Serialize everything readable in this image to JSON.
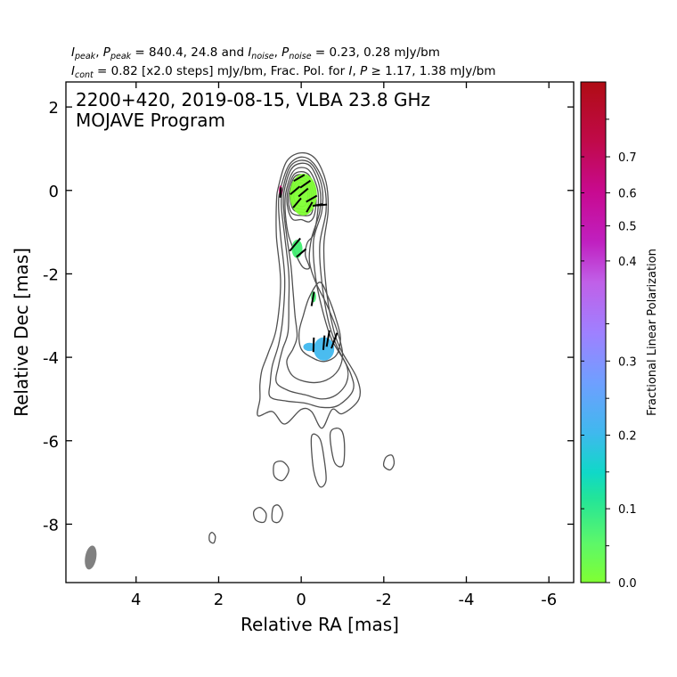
{
  "header": {
    "line1": {
      "i_peak": "I",
      "i_peak_sub": "peak",
      "p_peak": "P",
      "p_peak_sub": "peak",
      "peak_values": " = 840.4, 24.8 and ",
      "i_noise": "I",
      "i_noise_sub": "noise",
      "p_noise": "P",
      "p_noise_sub": "noise",
      "noise_values": " = 0.23, 0.28 mJy/bm"
    },
    "line2": {
      "i_cont": "I",
      "i_cont_sub": "cont",
      "cont_text": " = 0.82 [x2.0 steps] mJy/bm, Frac. Pol. for ",
      "i_sym": "I",
      "p_sym": "P",
      "threshold_text": " ≥ 1.17, 1.38 mJy/bm"
    }
  },
  "plot_title": {
    "line1": "2200+420, 2019-08-15, VLBA 23.8 GHz",
    "line2": "MOJAVE Program"
  },
  "colors": {
    "contour": "#505050",
    "beam": "#808080",
    "vector": "#000000",
    "colormap": [
      "#80ff33",
      "#40ee70",
      "#10d8c8",
      "#40b8ee",
      "#6f9fff",
      "#9f80ff",
      "#c060e8",
      "#c020c0",
      "#c80a70",
      "#b00c14"
    ]
  },
  "chart_data": {
    "type": "contour-map",
    "xlabel": "Relative RA [mas]",
    "ylabel": "Relative Dec [mas]",
    "xlim": [
      5.7,
      -6.6
    ],
    "ylim": [
      -9.4,
      2.6
    ],
    "xticks": [
      4,
      2,
      0,
      -2,
      -4,
      -6
    ],
    "yticks": [
      2,
      0,
      -2,
      -4,
      -6,
      -8
    ],
    "x_tick_labels": [
      "4",
      "2",
      "0",
      "-2",
      "-4",
      "-6"
    ],
    "y_tick_labels": [
      "2",
      "0",
      "-2",
      "-4",
      "-6",
      "-8"
    ],
    "contours_ra_dec": [
      [
        [
          0.55,
          0.1
        ],
        [
          0.35,
          0.7
        ],
        [
          0.0,
          0.9
        ],
        [
          -0.35,
          0.75
        ],
        [
          -0.6,
          0.2
        ],
        [
          -0.65,
          -0.5
        ],
        [
          -0.55,
          -1.3
        ],
        [
          -0.6,
          -2.3
        ],
        [
          -0.75,
          -3.2
        ],
        [
          -0.95,
          -3.8
        ],
        [
          -1.35,
          -4.5
        ],
        [
          -1.4,
          -5.0
        ],
        [
          -1.0,
          -5.35
        ],
        [
          -0.75,
          -5.25
        ],
        [
          -0.5,
          -5.7
        ],
        [
          -0.25,
          -5.3
        ],
        [
          0.0,
          -5.25
        ],
        [
          0.4,
          -5.6
        ],
        [
          0.7,
          -5.3
        ],
        [
          1.05,
          -5.4
        ],
        [
          1.0,
          -5.0
        ],
        [
          1.0,
          -4.65
        ],
        [
          0.95,
          -4.3
        ],
        [
          0.8,
          -3.9
        ],
        [
          0.6,
          -3.3
        ],
        [
          0.5,
          -2.2
        ],
        [
          0.6,
          -1.1
        ],
        [
          0.6,
          -0.3
        ]
      ],
      [
        [
          0.5,
          0.05
        ],
        [
          0.3,
          0.6
        ],
        [
          0.0,
          0.8
        ],
        [
          -0.3,
          0.65
        ],
        [
          -0.55,
          0.15
        ],
        [
          -0.6,
          -0.5
        ],
        [
          -0.45,
          -1.3
        ],
        [
          -0.5,
          -2.2
        ],
        [
          -0.65,
          -3.1
        ],
        [
          -0.85,
          -3.7
        ],
        [
          -1.2,
          -4.4
        ],
        [
          -1.25,
          -4.8
        ],
        [
          -0.9,
          -5.15
        ],
        [
          -0.5,
          -5.2
        ],
        [
          -0.1,
          -5.1
        ],
        [
          0.35,
          -5.05
        ],
        [
          0.75,
          -4.95
        ],
        [
          0.75,
          -4.6
        ],
        [
          0.7,
          -4.2
        ],
        [
          0.55,
          -3.7
        ],
        [
          0.45,
          -3.1
        ],
        [
          0.4,
          -2.1
        ],
        [
          0.5,
          -1.1
        ],
        [
          0.55,
          -0.35
        ]
      ],
      [
        [
          0.45,
          0.0
        ],
        [
          0.28,
          0.55
        ],
        [
          0.0,
          0.72
        ],
        [
          -0.28,
          0.6
        ],
        [
          -0.5,
          0.1
        ],
        [
          -0.5,
          -0.5
        ],
        [
          -0.3,
          -1.2
        ],
        [
          -0.35,
          -2.1
        ],
        [
          -0.55,
          -3.0
        ],
        [
          -0.75,
          -3.6
        ],
        [
          -1.1,
          -4.2
        ],
        [
          -1.1,
          -4.6
        ],
        [
          -0.85,
          -4.9
        ],
        [
          -0.5,
          -5.0
        ],
        [
          -0.1,
          -4.9
        ],
        [
          0.3,
          -4.8
        ],
        [
          0.6,
          -4.6
        ],
        [
          0.55,
          -4.2
        ],
        [
          0.45,
          -3.8
        ],
        [
          0.32,
          -3.4
        ],
        [
          0.3,
          -2.7
        ],
        [
          0.3,
          -2.0
        ],
        [
          0.4,
          -1.1
        ],
        [
          0.48,
          -0.4
        ]
      ],
      [
        [
          0.42,
          -0.05
        ],
        [
          0.25,
          0.5
        ],
        [
          0.0,
          0.65
        ],
        [
          -0.25,
          0.55
        ],
        [
          -0.45,
          0.05
        ],
        [
          -0.45,
          -0.5
        ],
        [
          -0.25,
          -1.15
        ],
        [
          -0.2,
          -1.7
        ],
        [
          -0.35,
          -2.2
        ],
        [
          -0.6,
          -2.7
        ],
        [
          -0.85,
          -3.3
        ],
        [
          -1.0,
          -3.9
        ],
        [
          -0.9,
          -4.3
        ],
        [
          -0.6,
          -4.55
        ],
        [
          -0.2,
          -4.6
        ],
        [
          0.2,
          -4.45
        ],
        [
          0.35,
          -4.1
        ],
        [
          0.2,
          -3.8
        ],
        [
          0.1,
          -3.5
        ],
        [
          0.15,
          -3.0
        ],
        [
          0.2,
          -2.4
        ],
        [
          0.25,
          -1.8
        ],
        [
          0.35,
          -1.1
        ],
        [
          0.42,
          -0.5
        ]
      ],
      [
        [
          0.38,
          -0.1
        ],
        [
          0.22,
          0.42
        ],
        [
          0.0,
          0.55
        ],
        [
          -0.22,
          0.45
        ],
        [
          -0.4,
          0.0
        ],
        [
          -0.4,
          -0.5
        ],
        [
          -0.3,
          -1.05
        ],
        [
          -0.15,
          -1.25
        ],
        [
          -0.1,
          -1.55
        ],
        [
          -0.2,
          -1.85
        ],
        [
          -0.05,
          -1.85
        ],
        [
          0.1,
          -1.6
        ],
        [
          0.3,
          -1.1
        ],
        [
          0.38,
          -0.6
        ]
      ],
      [
        [
          0.34,
          -0.1
        ],
        [
          0.2,
          0.35
        ],
        [
          0.0,
          0.45
        ],
        [
          -0.2,
          0.35
        ],
        [
          -0.35,
          -0.05
        ],
        [
          -0.33,
          -0.55
        ],
        [
          -0.2,
          -0.75
        ],
        [
          0.0,
          -0.7
        ],
        [
          0.2,
          -0.7
        ],
        [
          0.32,
          -0.45
        ]
      ],
      [
        [
          0.3,
          -0.1
        ],
        [
          0.18,
          0.3
        ],
        [
          0.0,
          0.38
        ],
        [
          -0.18,
          0.28
        ],
        [
          -0.3,
          -0.1
        ],
        [
          -0.25,
          -0.55
        ],
        [
          0.0,
          -0.6
        ],
        [
          0.22,
          -0.55
        ],
        [
          0.3,
          -0.35
        ]
      ],
      [
        [
          0.27,
          -0.1
        ],
        [
          0.15,
          0.25
        ],
        [
          0.0,
          0.32
        ],
        [
          -0.15,
          0.22
        ],
        [
          -0.25,
          -0.1
        ],
        [
          -0.2,
          -0.5
        ],
        [
          0.0,
          -0.52
        ],
        [
          0.2,
          -0.45
        ]
      ],
      [
        [
          0.23,
          -0.1
        ],
        [
          0.12,
          0.2
        ],
        [
          0.0,
          0.25
        ],
        [
          -0.12,
          0.18
        ],
        [
          -0.2,
          -0.1
        ],
        [
          -0.15,
          -0.42
        ],
        [
          0.0,
          -0.45
        ],
        [
          0.17,
          -0.38
        ]
      ],
      [
        [
          0.18,
          -0.12
        ],
        [
          0.08,
          0.15
        ],
        [
          0.0,
          0.18
        ],
        [
          -0.1,
          0.12
        ],
        [
          -0.16,
          -0.12
        ],
        [
          -0.1,
          -0.35
        ],
        [
          0.02,
          -0.38
        ],
        [
          0.13,
          -0.3
        ]
      ],
      [
        [
          -0.45,
          -2.2
        ],
        [
          -0.65,
          -2.55
        ],
        [
          -0.85,
          -3.1
        ],
        [
          -0.95,
          -3.55
        ],
        [
          -0.85,
          -3.95
        ],
        [
          -0.55,
          -4.1
        ],
        [
          -0.25,
          -4.0
        ],
        [
          0.0,
          -3.8
        ],
        [
          0.05,
          -3.4
        ],
        [
          -0.05,
          -3.0
        ],
        [
          -0.2,
          -2.55
        ]
      ],
      [
        [
          -0.7,
          -5.85
        ],
        [
          -0.8,
          -6.5
        ],
        [
          -1.0,
          -6.6
        ],
        [
          -1.05,
          -6.2
        ],
        [
          -1.0,
          -5.8
        ],
        [
          -0.85,
          -5.7
        ]
      ],
      [
        [
          -0.25,
          -5.9
        ],
        [
          -0.3,
          -6.7
        ],
        [
          -0.45,
          -7.1
        ],
        [
          -0.6,
          -6.95
        ],
        [
          -0.55,
          -6.4
        ],
        [
          -0.45,
          -5.95
        ]
      ],
      [
        [
          -2.0,
          -6.6
        ],
        [
          -2.15,
          -6.7
        ],
        [
          -2.25,
          -6.55
        ],
        [
          -2.2,
          -6.35
        ],
        [
          -2.05,
          -6.4
        ]
      ],
      [
        [
          0.45,
          -6.5
        ],
        [
          0.3,
          -6.7
        ],
        [
          0.45,
          -6.95
        ],
        [
          0.65,
          -6.85
        ],
        [
          0.65,
          -6.55
        ]
      ],
      [
        [
          1.0,
          -7.6
        ],
        [
          0.85,
          -7.75
        ],
        [
          0.9,
          -7.95
        ],
        [
          1.1,
          -7.9
        ],
        [
          1.15,
          -7.7
        ]
      ],
      [
        [
          0.55,
          -7.55
        ],
        [
          0.45,
          -7.75
        ],
        [
          0.55,
          -7.95
        ],
        [
          0.7,
          -7.9
        ],
        [
          0.68,
          -7.6
        ]
      ],
      [
        [
          2.15,
          -8.2
        ],
        [
          2.08,
          -8.3
        ],
        [
          2.12,
          -8.45
        ],
        [
          2.22,
          -8.4
        ],
        [
          2.22,
          -8.25
        ]
      ]
    ],
    "polarization_patches": [
      {
        "ra": -0.05,
        "dec": -0.1,
        "rx": 0.33,
        "ry": 0.5,
        "frac": 0.04
      },
      {
        "ra": 0.1,
        "dec": -1.4,
        "rx": 0.13,
        "ry": 0.22,
        "frac": 0.05
      },
      {
        "ra": -0.3,
        "dec": -2.55,
        "rx": 0.06,
        "ry": 0.13,
        "frac": 0.12
      },
      {
        "ra": -0.55,
        "dec": -3.8,
        "rx": 0.25,
        "ry": 0.28,
        "frac": 0.26
      },
      {
        "ra": -0.2,
        "dec": -3.75,
        "rx": 0.15,
        "ry": 0.1,
        "frac": 0.22
      },
      {
        "ra": 0.5,
        "dec": 0.0,
        "rx": 0.04,
        "ry": 0.12,
        "frac": 0.68
      }
    ],
    "evpa_vectors": [
      {
        "ra": 0.05,
        "dec": 0.3,
        "angle": 30,
        "len": 0.3
      },
      {
        "ra": -0.1,
        "dec": 0.15,
        "angle": 35,
        "len": 0.3
      },
      {
        "ra": 0.15,
        "dec": 0.0,
        "angle": 40,
        "len": 0.3
      },
      {
        "ra": -0.05,
        "dec": -0.05,
        "angle": 40,
        "len": 0.3
      },
      {
        "ra": -0.25,
        "dec": -0.2,
        "angle": 30,
        "len": 0.3
      },
      {
        "ra": 0.1,
        "dec": -0.3,
        "angle": 50,
        "len": 0.3
      },
      {
        "ra": -0.2,
        "dec": -0.4,
        "angle": 60,
        "len": 0.28
      },
      {
        "ra": -0.4,
        "dec": -0.35,
        "angle": 10,
        "len": 0.25
      },
      {
        "ra": -0.5,
        "dec": -0.35,
        "angle": 5,
        "len": 0.25
      },
      {
        "ra": 0.5,
        "dec": -0.05,
        "angle": 85,
        "len": 0.25
      },
      {
        "ra": 0.15,
        "dec": -1.3,
        "angle": 50,
        "len": 0.4
      },
      {
        "ra": 0.0,
        "dec": -1.5,
        "angle": 40,
        "len": 0.3
      },
      {
        "ra": -0.28,
        "dec": -2.6,
        "angle": 80,
        "len": 0.35
      },
      {
        "ra": -0.3,
        "dec": -3.7,
        "angle": 88,
        "len": 0.35
      },
      {
        "ra": -0.55,
        "dec": -3.65,
        "angle": 85,
        "len": 0.35
      },
      {
        "ra": -0.65,
        "dec": -3.55,
        "angle": 80,
        "len": 0.4
      },
      {
        "ra": -0.8,
        "dec": -3.6,
        "angle": 70,
        "len": 0.4
      }
    ],
    "beam": {
      "ra": 5.1,
      "dec": -8.8,
      "major": 0.58,
      "minor": 0.27,
      "pa": -10
    },
    "colorbar": {
      "label": "Fractional Linear Polarization",
      "range": [
        0.0,
        0.75
      ],
      "tick_values": [
        0.0,
        0.1,
        0.2,
        0.3,
        0.4,
        0.5,
        0.6,
        0.7
      ],
      "tick_labels": [
        "0.0",
        "0.1",
        "0.2",
        "0.3",
        "0.4",
        "0.5",
        "0.6",
        "0.7"
      ],
      "positions": [
        0.0,
        0.1475,
        0.2945,
        0.4425,
        0.6425,
        0.7125,
        0.7785,
        0.8505
      ],
      "minor_positions": [
        0.0735,
        0.221,
        0.368,
        0.517,
        0.9255
      ]
    }
  }
}
